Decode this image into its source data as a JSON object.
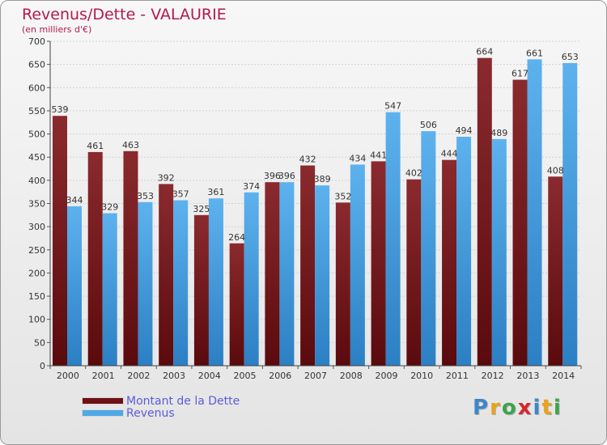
{
  "header": {
    "title": "Revenus/Dette - VALAURIE",
    "subtitle": "(en milliers d'€)"
  },
  "logo": {
    "letters": [
      {
        "char": "P",
        "color": "#3f86c9"
      },
      {
        "char": "r",
        "color": "#e9a21b"
      },
      {
        "char": "o",
        "color": "#3fa34d"
      },
      {
        "char": "x",
        "color": "#d7262c"
      },
      {
        "char": "i",
        "color": "#3f86c9"
      },
      {
        "char": "t",
        "color": "#e9a21b"
      },
      {
        "char": "i",
        "color": "#3fa34d"
      }
    ]
  },
  "chart_data": {
    "type": "bar",
    "title": "Revenus/Dette - VALAURIE",
    "subtitle": "(en milliers d'€)",
    "categories": [
      "2000",
      "2001",
      "2002",
      "2003",
      "2004",
      "2005",
      "2006",
      "2007",
      "2008",
      "2009",
      "2010",
      "2011",
      "2012",
      "2013",
      "2014"
    ],
    "series": [
      {
        "name": "Montant de la Dette",
        "values": [
          539,
          461,
          463,
          392,
          325,
          264,
          396,
          432,
          352,
          441,
          402,
          444,
          664,
          617,
          408
        ],
        "color": "#7b1a1f"
      },
      {
        "name": "Revenus",
        "values": [
          344,
          329,
          353,
          357,
          361,
          374,
          396,
          389,
          434,
          547,
          506,
          494,
          489,
          661,
          653
        ],
        "color": "#4ea7e6"
      }
    ],
    "ylim": [
      0,
      700
    ],
    "yticks": [
      0,
      50,
      100,
      150,
      200,
      250,
      300,
      350,
      400,
      450,
      500,
      550,
      600,
      650,
      700
    ],
    "grid": true,
    "legend_position": "bottom-left"
  }
}
